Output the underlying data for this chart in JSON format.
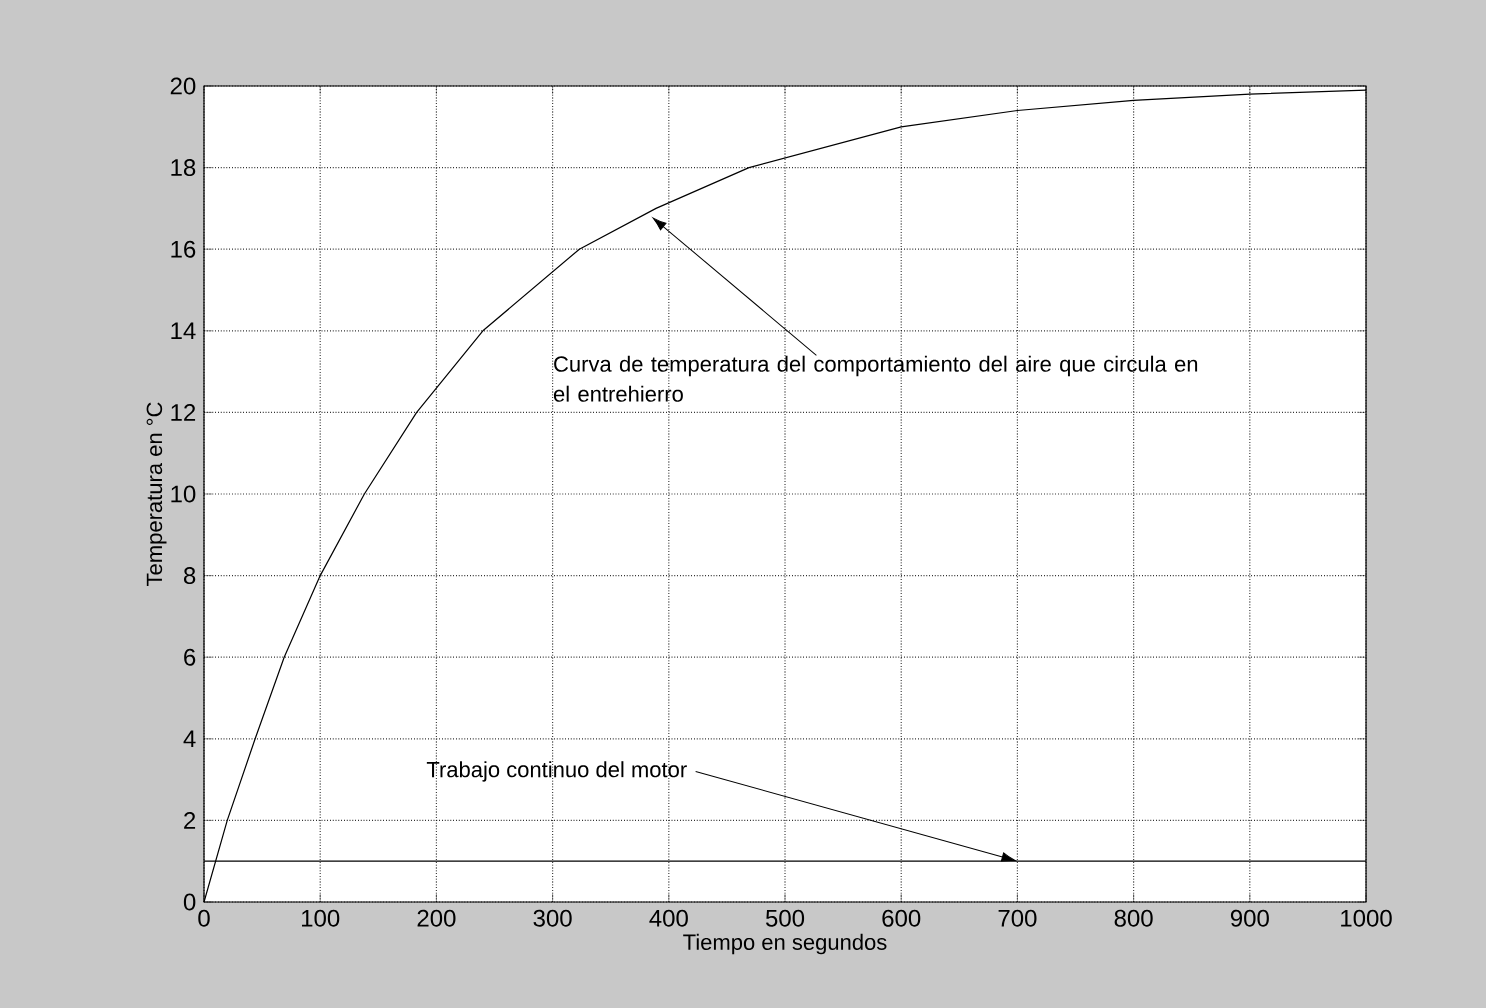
{
  "chart_data": {
    "type": "line",
    "xlabel": "Tiempo en segundos",
    "ylabel": "Temperatura en °C",
    "series": [
      {
        "color": "#000000",
        "x": [
          0,
          20,
          44,
          69,
          100,
          138,
          183,
          240,
          323,
          389,
          469,
          600,
          700,
          800,
          900,
          1000
        ],
        "values": [
          0,
          2,
          4,
          6,
          8,
          10,
          12,
          14,
          16,
          17,
          18,
          19,
          19.4,
          19.65,
          19.8,
          19.9
        ]
      },
      {
        "color": "#000000",
        "x": [
          0,
          1000
        ],
        "values": [
          1,
          1
        ]
      }
    ],
    "annotations": [
      {
        "text": "Curva de temperatura del comportamiento del aire que circula en el entrehierro",
        "x": 385,
        "y": 16.8
      },
      {
        "text": "Trabajo continuo del motor",
        "x": 700,
        "y": 1
      }
    ],
    "xlim": [
      0,
      1000
    ],
    "ylim": [
      0,
      20
    ],
    "xticks": [
      0,
      100,
      200,
      300,
      400,
      500,
      600,
      700,
      800,
      900,
      1000
    ],
    "yticks": [
      0,
      2,
      4,
      6,
      8,
      10,
      12,
      14,
      16,
      18,
      20
    ],
    "grid": true,
    "marker": "none",
    "line_style": "solid"
  }
}
